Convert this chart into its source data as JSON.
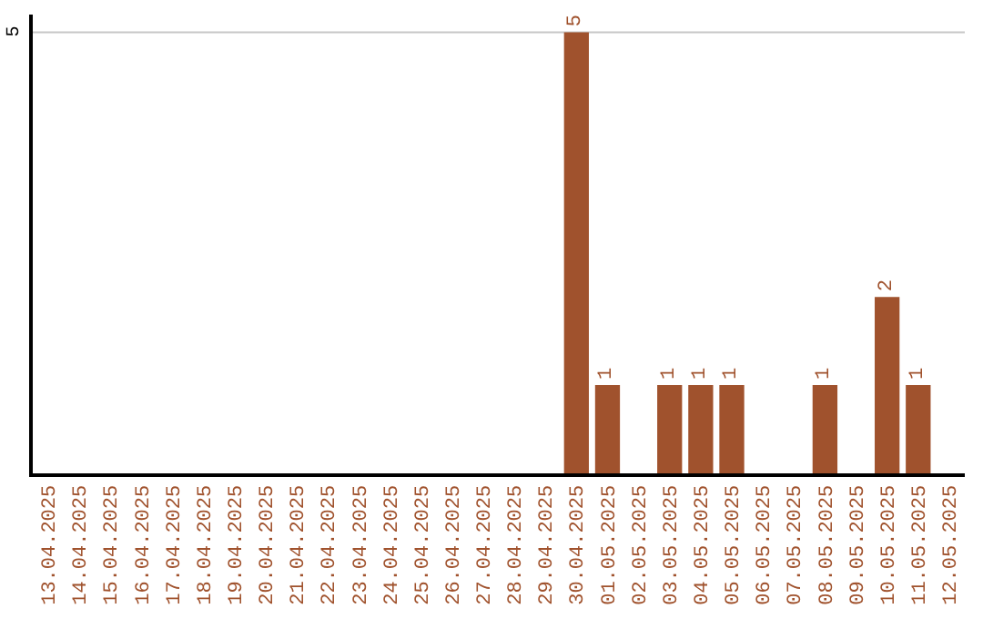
{
  "chart_data": {
    "type": "bar",
    "categories": [
      "13.04.2025",
      "14.04.2025",
      "15.04.2025",
      "16.04.2025",
      "17.04.2025",
      "18.04.2025",
      "19.04.2025",
      "20.04.2025",
      "21.04.2025",
      "22.04.2025",
      "23.04.2025",
      "24.04.2025",
      "25.04.2025",
      "26.04.2025",
      "27.04.2025",
      "28.04.2025",
      "29.04.2025",
      "30.04.2025",
      "01.05.2025",
      "02.05.2025",
      "03.05.2025",
      "04.05.2025",
      "05.05.2025",
      "06.05.2025",
      "07.05.2025",
      "08.05.2025",
      "09.05.2025",
      "10.05.2025",
      "11.05.2025",
      "12.05.2025"
    ],
    "values": [
      null,
      null,
      null,
      null,
      null,
      null,
      null,
      null,
      null,
      null,
      null,
      null,
      null,
      null,
      null,
      null,
      null,
      5,
      1,
      null,
      1,
      1,
      1,
      null,
      null,
      1,
      null,
      2,
      1,
      null
    ],
    "data_labels": true,
    "color": "#a0522d",
    "ylim": [
      0,
      5.2
    ],
    "ref_lines": [
      {
        "axis": "y",
        "value": 5,
        "label": "5",
        "color": "#c8c8c8"
      }
    ],
    "legend": false
  }
}
